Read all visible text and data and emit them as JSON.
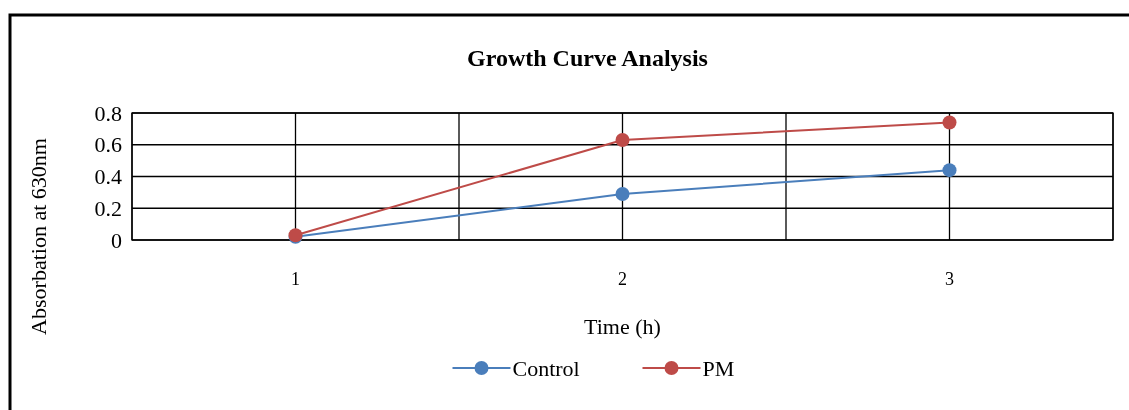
{
  "chart_data": {
    "type": "line",
    "title": "Growth Curve Analysis",
    "xlabel": "Time (h)",
    "ylabel": "Absorbation at 630nm",
    "categories": [
      "1",
      "2",
      "3"
    ],
    "series": [
      {
        "name": "Control",
        "color": "#4a7ebb",
        "values": [
          0.02,
          0.29,
          0.44
        ]
      },
      {
        "name": "PM",
        "color": "#be4b48",
        "values": [
          0.03,
          0.63,
          0.74
        ]
      }
    ],
    "ylim": [
      0,
      0.8
    ],
    "yticks": [
      0,
      0.2,
      0.4,
      0.6,
      0.8
    ],
    "grid": true,
    "legend": "bottom",
    "marker": "circle",
    "line_style": "solid"
  }
}
